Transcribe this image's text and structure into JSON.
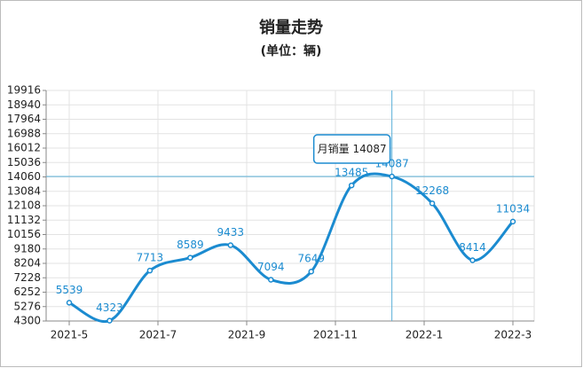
{
  "chart_data": {
    "type": "line",
    "title": "销量走势",
    "subtitle": "(单位：辆)",
    "x_labels": [
      "2021-5",
      "2021-7",
      "2021-9",
      "2021-11",
      "2022-1",
      "2022-3"
    ],
    "series": [
      {
        "name": "月销量",
        "color": "#1b8bd0",
        "values": [
          5539,
          4323,
          7713,
          8589,
          9433,
          7094,
          7649,
          13485,
          14087,
          12268,
          8414,
          11034
        ]
      }
    ],
    "ylim": [
      4300,
      19916
    ],
    "yticks": [
      4300,
      5276,
      6252,
      7228,
      8204,
      9180,
      10156,
      11132,
      12108,
      13084,
      14060,
      15036,
      16012,
      16988,
      17964,
      18940,
      19916
    ],
    "grid": true,
    "tooltip_index": 8
  }
}
